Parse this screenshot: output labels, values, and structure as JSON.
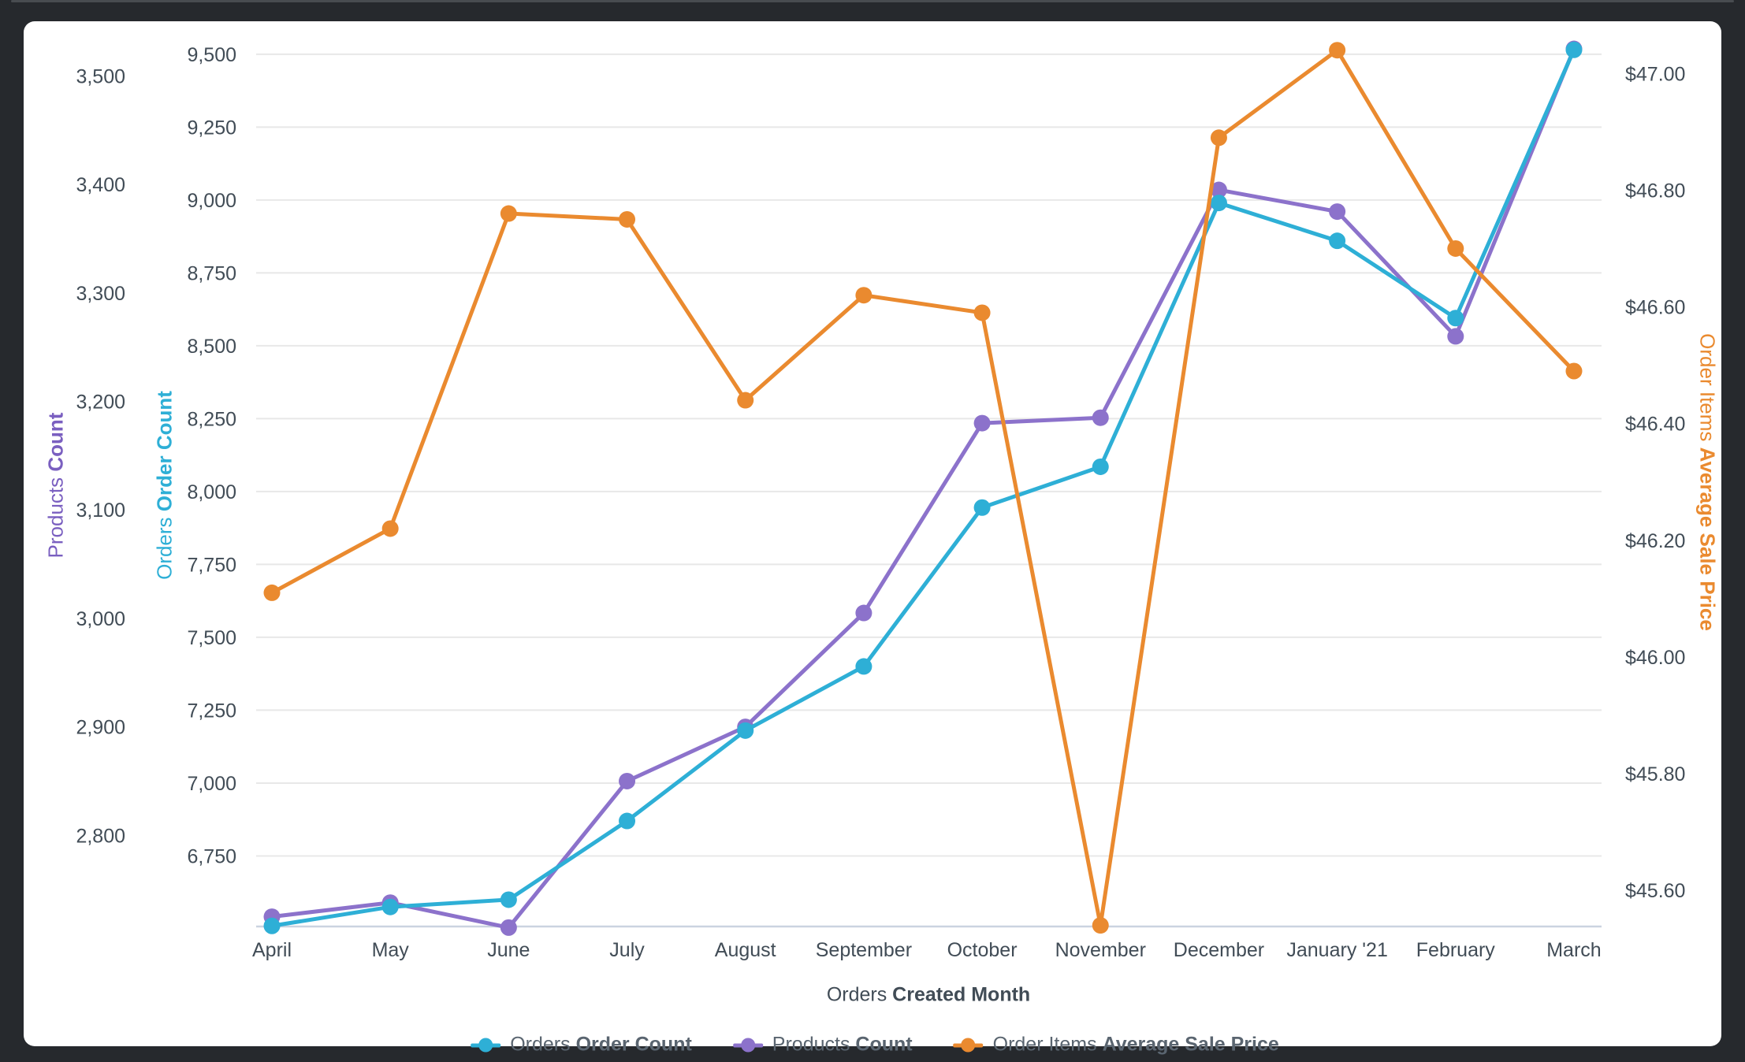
{
  "chart_data": {
    "type": "line",
    "title": "",
    "x_axis": {
      "title_regular": "Orders",
      "title_bold": "Created Month"
    },
    "categories": [
      "April",
      "May",
      "June",
      "July",
      "August",
      "September",
      "October",
      "November",
      "December",
      "January '21",
      "February",
      "March"
    ],
    "series": [
      {
        "id": "orders",
        "label_regular": "Orders",
        "label_bold": "Order Count",
        "color": "#2EAFD6",
        "axis": "orders",
        "z": 2,
        "values": [
          6510,
          6575,
          6600,
          6870,
          7180,
          7400,
          7945,
          8085,
          8990,
          8860,
          8595,
          9515
        ]
      },
      {
        "id": "products",
        "label_regular": "Products",
        "label_bold": "Count",
        "color": "#8C72CB",
        "axis": "products",
        "z": 1,
        "values": [
          2725,
          2738,
          2715,
          2850,
          2900,
          3005,
          3180,
          3185,
          3395,
          3375,
          3260,
          3525
        ]
      },
      {
        "id": "price",
        "label_regular": "Order Items",
        "label_bold": "Average Sale Price",
        "color": "#EA8A2F",
        "axis": "price",
        "z": 3,
        "values": [
          46.11,
          46.22,
          46.76,
          46.75,
          46.44,
          46.62,
          46.59,
          45.54,
          46.89,
          47.04,
          46.7,
          46.49
        ]
      }
    ],
    "axes": {
      "orders": {
        "title_regular": "Orders",
        "title_bold": "Order Count",
        "side": "left",
        "grid": true,
        "range": [
          6508,
          9578
        ],
        "ticks": [
          {
            "v": 6750,
            "label": "6,750"
          },
          {
            "v": 7000,
            "label": "7,000"
          },
          {
            "v": 7250,
            "label": "7,250"
          },
          {
            "v": 7500,
            "label": "7,500"
          },
          {
            "v": 7750,
            "label": "7,750"
          },
          {
            "v": 8000,
            "label": "8,000"
          },
          {
            "v": 8250,
            "label": "8,250"
          },
          {
            "v": 8500,
            "label": "8,500"
          },
          {
            "v": 8750,
            "label": "8,750"
          },
          {
            "v": 9000,
            "label": "9,000"
          },
          {
            "v": 9250,
            "label": "9,250"
          },
          {
            "v": 9500,
            "label": "9,500"
          }
        ]
      },
      "products": {
        "title_regular": "Products",
        "title_bold": "Count",
        "side": "left-outer",
        "grid": false,
        "range": [
          2716,
          3541
        ],
        "ticks": [
          {
            "v": 2800,
            "label": "2,800"
          },
          {
            "v": 2900,
            "label": "2,900"
          },
          {
            "v": 3000,
            "label": "3,000"
          },
          {
            "v": 3100,
            "label": "3,100"
          },
          {
            "v": 3200,
            "label": "3,200"
          },
          {
            "v": 3300,
            "label": "3,300"
          },
          {
            "v": 3400,
            "label": "3,400"
          },
          {
            "v": 3500,
            "label": "3,500"
          }
        ]
      },
      "price": {
        "title_regular": "Order Items",
        "title_bold": "Average Sale Price",
        "side": "right",
        "grid": false,
        "range": [
          45.538,
          47.072
        ],
        "ticks": [
          {
            "v": 45.6,
            "label": "$45.60"
          },
          {
            "v": 45.8,
            "label": "$45.80"
          },
          {
            "v": 46.0,
            "label": "$46.00"
          },
          {
            "v": 46.2,
            "label": "$46.20"
          },
          {
            "v": 46.4,
            "label": "$46.40"
          },
          {
            "v": 46.6,
            "label": "$46.60"
          },
          {
            "v": 46.8,
            "label": "$46.80"
          },
          {
            "v": 47.0,
            "label": "$47.00"
          }
        ]
      }
    },
    "legend_position": "bottom",
    "grid_color": "#E8E8E8",
    "baseline_color": "#CBD3E0",
    "label_color": "#414C56"
  }
}
